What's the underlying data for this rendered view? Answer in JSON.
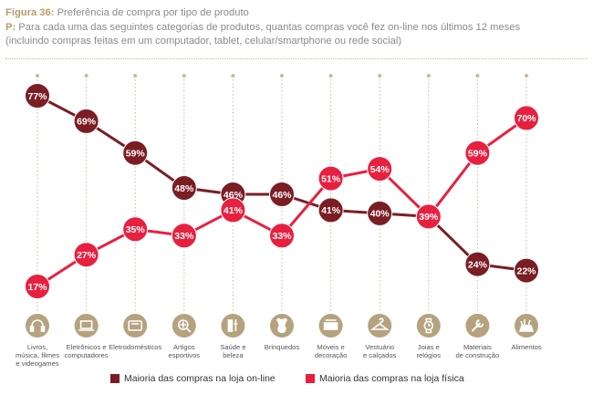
{
  "header": {
    "fig_label": "Figura 36:",
    "fig_title": " Preferência de compra por tipo de produto",
    "q_label": "P:",
    "q_line1": " Para cada uma das seguintes categorias de produtos, quantas compras você fez on-line nos últimos 12 meses",
    "q_line2": "(incluindo compras feitas em um computador, tablet, celular/smartphone ou rede social)"
  },
  "colors": {
    "online": "#7a1e24",
    "physical": "#e8203f",
    "icon_bg": "#b5a27e",
    "grid": "#c8b89a"
  },
  "chart_data": {
    "type": "line",
    "categories": [
      [
        "Livros,",
        "música, filmes",
        "e videogames"
      ],
      [
        "Eletrônicos e",
        "computadores"
      ],
      [
        "Eletrodomésticos"
      ],
      [
        "Artigos",
        "esportivos"
      ],
      [
        "Saúde e",
        "beleza"
      ],
      [
        "Brinquedos"
      ],
      [
        "Móveis e",
        "decoração"
      ],
      [
        "Vestuário",
        "e calçados"
      ],
      [
        "Joias e",
        "relógios"
      ],
      [
        "Materiais",
        "de construção"
      ],
      [
        "Alimentos"
      ]
    ],
    "icons": [
      "headphones-icon",
      "laptop-icon",
      "appliance-icon",
      "sports-icon",
      "beauty-icon",
      "teddy-bear-icon",
      "furniture-icon",
      "hanger-icon",
      "watch-icon",
      "tools-icon",
      "food-icon"
    ],
    "series": [
      {
        "name": "Maioria das compras na loja on-line",
        "values": [
          77,
          69,
          59,
          48,
          46,
          46,
          41,
          40,
          39,
          24,
          22
        ],
        "labels": [
          "77%",
          "69%",
          "59%",
          "48%",
          "46%",
          "46%",
          "41%",
          "40%",
          "39%",
          "24%",
          "22%"
        ]
      },
      {
        "name": "Maioria das compras na loja física",
        "values": [
          17,
          27,
          35,
          33,
          41,
          33,
          51,
          54,
          39,
          59,
          70
        ],
        "labels": [
          "17%",
          "27%",
          "35%",
          "33%",
          "41%",
          "33%",
          "51%",
          "54%",
          "39%",
          "59%",
          "70%"
        ]
      }
    ]
  },
  "legend": {
    "online": "Maioria das compras na loja on-line",
    "physical": "Maioria das compras na loja física"
  }
}
